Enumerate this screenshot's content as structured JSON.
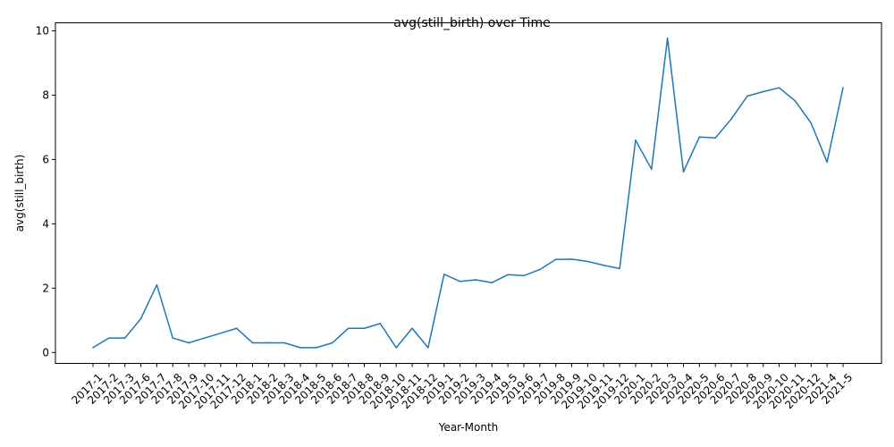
{
  "chart_data": {
    "type": "line",
    "title": "avg(still_birth) over Time",
    "xlabel": "Year-Month",
    "ylabel": "avg(still_birth)",
    "ylim": [
      -0.34,
      10.25
    ],
    "yticks": [
      0,
      2,
      4,
      6,
      8,
      10
    ],
    "grid": false,
    "legend": "none",
    "line_color": "#1f77b4",
    "categories": [
      "2017-1",
      "2017-2",
      "2017-3",
      "2017-6",
      "2017-7",
      "2017-8",
      "2017-9",
      "2017-10",
      "2017-11",
      "2017-12",
      "2018-1",
      "2018-2",
      "2018-3",
      "2018-4",
      "2018-5",
      "2018-6",
      "2018-7",
      "2018-8",
      "2018-9",
      "2018-10",
      "2018-11",
      "2018-12",
      "2019-1",
      "2019-2",
      "2019-3",
      "2019-4",
      "2019-5",
      "2019-6",
      "2019-7",
      "2019-8",
      "2019-9",
      "2019-10",
      "2019-11",
      "2019-12",
      "2020-1",
      "2020-2",
      "2020-3",
      "2020-4",
      "2020-5",
      "2020-6",
      "2020-7",
      "2020-8",
      "2020-9",
      "2020-10",
      "2020-11",
      "2020-12",
      "2021-4",
      "2021-5"
    ],
    "series": [
      {
        "values": [
          0.15,
          0.45,
          0.45,
          1.05,
          2.1,
          0.45,
          0.3,
          0.45,
          0.6,
          0.75,
          0.3,
          0.3,
          0.3,
          0.15,
          0.15,
          0.3,
          0.75,
          0.75,
          0.9,
          0.15,
          0.75,
          0.15,
          2.43,
          2.21,
          2.26,
          2.17,
          2.42,
          2.39,
          2.58,
          2.89,
          2.9,
          2.83,
          2.71,
          2.61,
          6.6,
          5.7,
          9.77,
          5.62,
          6.7,
          6.67,
          7.26,
          7.97,
          8.11,
          8.23,
          7.82,
          7.13,
          5.92,
          8.23
        ]
      }
    ]
  }
}
